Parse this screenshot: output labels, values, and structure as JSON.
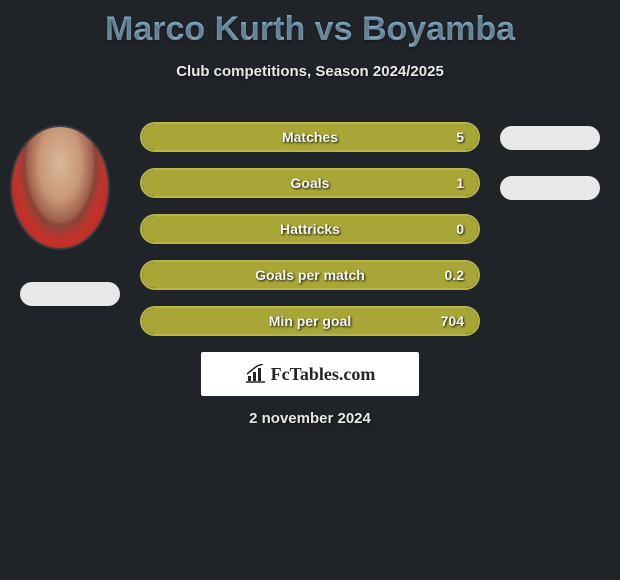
{
  "title": "Marco Kurth vs Boyamba",
  "subtitle": "Club competitions, Season 2024/2025",
  "footer_date": "2 november 2024",
  "watermark_text": "FcTables.com",
  "colors": {
    "background": "#202428",
    "bar_fill": "#a9a638",
    "bar_border": "#b8b549",
    "pill": "#e8e8e8",
    "watermark_bg": "#ffffff",
    "text_light": "#f5f5f5"
  },
  "bars": [
    {
      "label": "Matches",
      "value": "5",
      "fill_pct": 100
    },
    {
      "label": "Goals",
      "value": "1",
      "fill_pct": 100
    },
    {
      "label": "Hattricks",
      "value": "0",
      "fill_pct": 100
    },
    {
      "label": "Goals per match",
      "value": "0.2",
      "fill_pct": 100
    },
    {
      "label": "Min per goal",
      "value": "704",
      "fill_pct": 100
    }
  ]
}
